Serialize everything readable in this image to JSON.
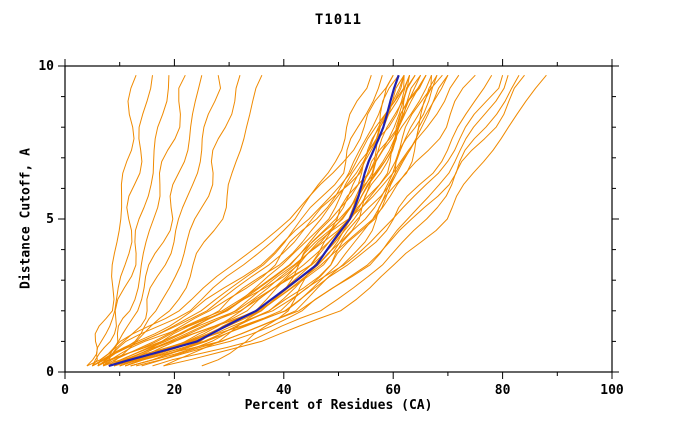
{
  "chart_data": {
    "type": "line",
    "title": "T1011",
    "xlabel": "Percent of Residues (CA)",
    "ylabel": "Distance Cutoff, A",
    "xlim": [
      0,
      100
    ],
    "ylim": [
      0,
      10
    ],
    "x_ticks": [
      0,
      20,
      40,
      60,
      80,
      100
    ],
    "y_ticks": [
      0,
      5,
      10
    ],
    "x_minor_step": 10,
    "y_minor_step": 1,
    "grid": false,
    "legend": "none",
    "colors": {
      "models": "#f08a00",
      "median": "#2020b0",
      "frame": "#000000"
    },
    "y_anchor_levels": [
      0.2,
      1,
      2,
      3.5,
      5,
      6.5,
      8,
      9.7
    ],
    "series": [
      {
        "name": "model-curves",
        "role": "ensemble of model curves",
        "curves_x": [
          [
            4,
            6,
            8,
            9,
            10,
            11,
            12,
            13
          ],
          [
            5,
            7,
            9,
            11,
            12,
            13,
            14,
            16
          ],
          [
            5,
            8,
            10,
            12,
            14,
            16,
            17,
            19
          ],
          [
            6,
            9,
            12,
            14,
            16,
            18,
            20,
            22
          ],
          [
            6,
            10,
            13,
            16,
            19,
            21,
            23,
            25
          ],
          [
            7,
            11,
            15,
            18,
            21,
            24,
            26,
            28
          ],
          [
            7,
            12,
            17,
            21,
            24,
            27,
            29,
            32
          ],
          [
            8,
            13,
            19,
            24,
            28,
            31,
            33,
            36
          ],
          [
            5,
            12,
            22,
            33,
            42,
            48,
            52,
            56
          ],
          [
            6,
            14,
            25,
            36,
            44,
            50,
            54,
            58
          ],
          [
            7,
            16,
            27,
            38,
            46,
            52,
            56,
            60
          ],
          [
            8,
            18,
            29,
            40,
            48,
            53,
            57,
            61
          ],
          [
            9,
            20,
            31,
            42,
            50,
            55,
            58,
            62
          ],
          [
            10,
            22,
            33,
            44,
            51,
            56,
            59,
            63
          ],
          [
            11,
            24,
            35,
            45,
            52,
            57,
            60,
            64
          ],
          [
            12,
            26,
            37,
            47,
            53,
            58,
            61,
            65
          ],
          [
            6,
            15,
            28,
            39,
            47,
            53,
            58,
            62
          ],
          [
            7,
            17,
            30,
            41,
            49,
            54,
            59,
            63
          ],
          [
            8,
            19,
            32,
            43,
            50,
            56,
            60,
            64
          ],
          [
            9,
            21,
            34,
            44,
            52,
            57,
            61,
            66
          ],
          [
            10,
            23,
            36,
            46,
            53,
            58,
            62,
            67
          ],
          [
            11,
            25,
            38,
            48,
            55,
            60,
            63,
            68
          ],
          [
            12,
            27,
            40,
            50,
            56,
            61,
            64,
            69
          ],
          [
            13,
            29,
            42,
            51,
            57,
            62,
            65,
            70
          ],
          [
            5,
            13,
            24,
            35,
            45,
            52,
            57,
            62
          ],
          [
            6,
            16,
            29,
            41,
            50,
            56,
            60,
            65
          ],
          [
            7,
            18,
            31,
            43,
            51,
            57,
            61,
            66
          ],
          [
            8,
            20,
            33,
            45,
            53,
            59,
            63,
            67
          ],
          [
            9,
            22,
            36,
            47,
            54,
            60,
            64,
            68
          ],
          [
            10,
            24,
            38,
            49,
            56,
            61,
            65,
            70
          ],
          [
            4,
            11,
            20,
            31,
            41,
            49,
            55,
            60
          ],
          [
            5,
            14,
            26,
            37,
            46,
            53,
            58,
            63
          ],
          [
            8,
            18,
            30,
            42,
            52,
            60,
            66,
            72
          ],
          [
            10,
            22,
            35,
            47,
            56,
            63,
            69,
            75
          ],
          [
            12,
            26,
            40,
            52,
            60,
            67,
            72,
            78
          ],
          [
            14,
            30,
            44,
            55,
            63,
            70,
            75,
            81
          ],
          [
            16,
            33,
            47,
            58,
            66,
            72,
            78,
            84
          ],
          [
            18,
            36,
            50,
            61,
            69,
            75,
            81,
            88
          ],
          [
            9,
            24,
            39,
            51,
            60,
            68,
            74,
            80
          ],
          [
            11,
            28,
            43,
            55,
            64,
            71,
            77,
            83
          ],
          [
            18,
            28,
            36,
            43,
            49,
            54,
            58,
            62
          ],
          [
            25,
            34,
            40,
            46,
            52,
            57,
            61,
            66
          ]
        ]
      },
      {
        "name": "median-curve",
        "role": "highlighted median/consensus curve",
        "x": [
          8,
          24,
          35,
          46,
          52,
          55,
          58,
          61
        ]
      }
    ]
  }
}
